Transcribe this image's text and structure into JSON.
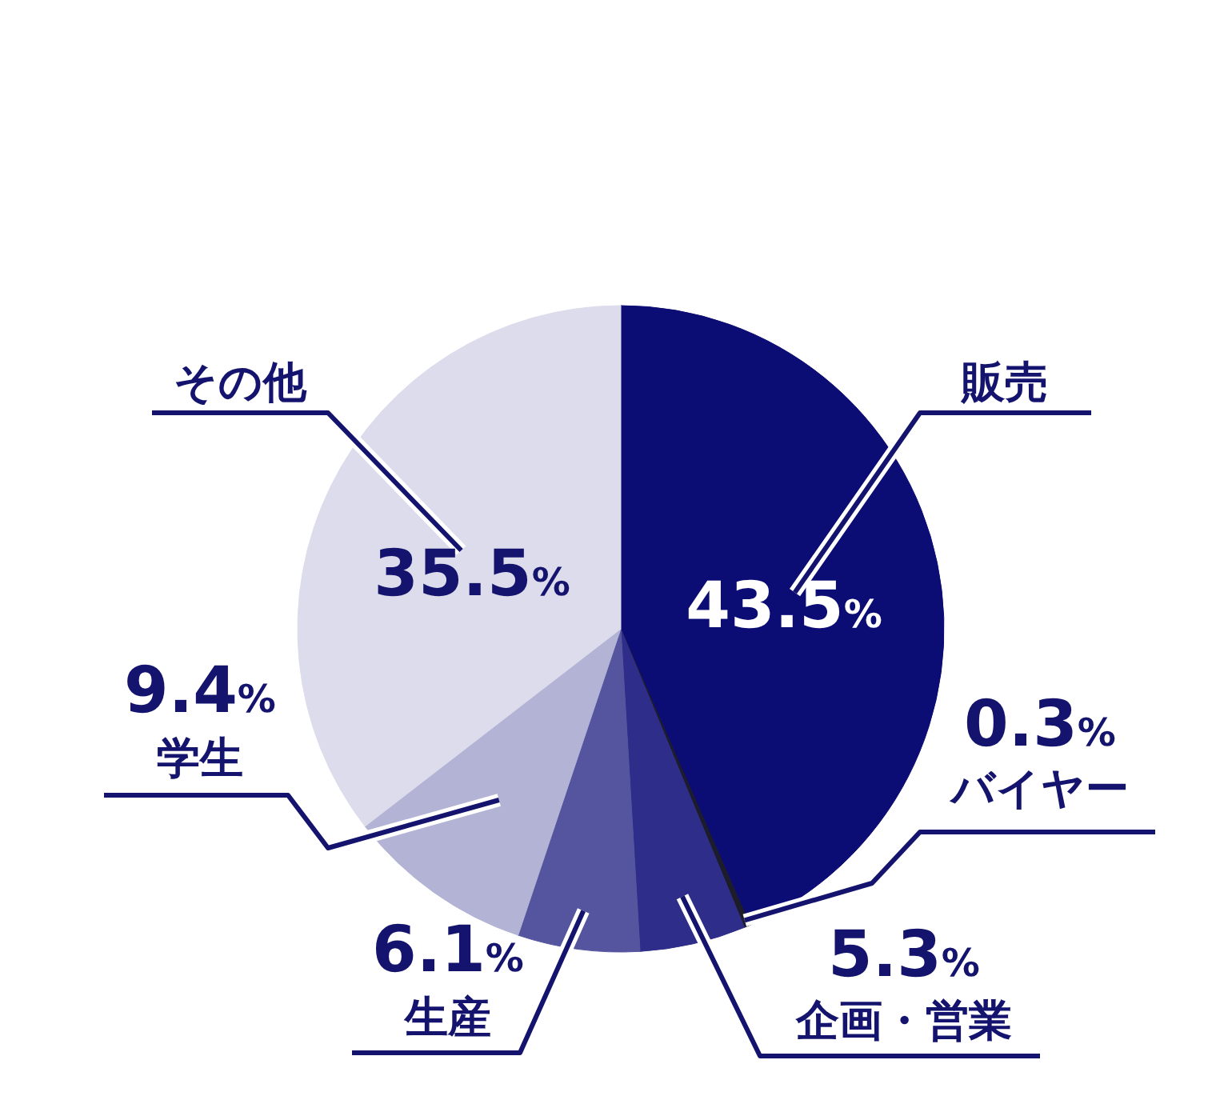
{
  "chart_data": {
    "type": "pie",
    "categories": [
      "販売",
      "バイヤー",
      "企画・営業",
      "生産",
      "学生",
      "その他"
    ],
    "values": [
      43.5,
      0.3,
      5.3,
      6.1,
      9.4,
      35.5
    ],
    "colors": [
      "#0c0c75",
      "#1c1c2a",
      "#2e2e8a",
      "#55559f",
      "#b3b3d5",
      "#dcdcec"
    ],
    "value_labels": [
      "43.5%",
      "0.3%",
      "5.3%",
      "6.1%",
      "9.4%",
      "35.5%"
    ]
  }
}
